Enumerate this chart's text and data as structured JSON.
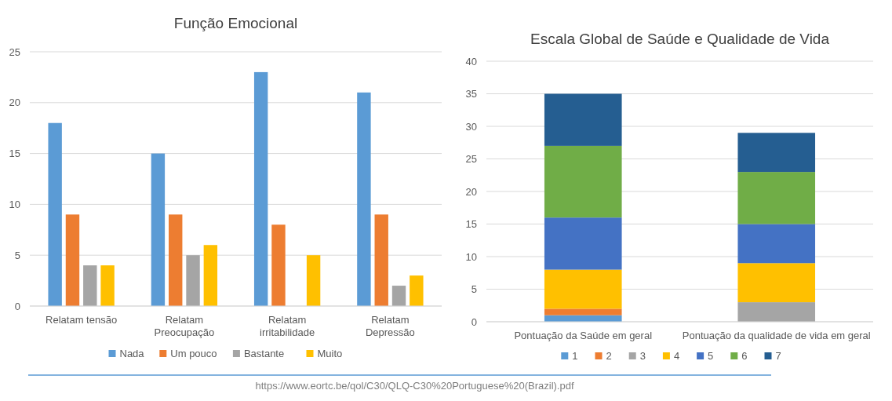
{
  "chart_data": [
    {
      "type": "bar",
      "title": "Função Emocional",
      "categories": [
        "Relatam tensão",
        "Relatam Preocupação",
        "Relatam irritabilidade",
        "Relatam Depressão"
      ],
      "series": [
        {
          "name": "Nada",
          "color": "#5b9bd5",
          "values": [
            18,
            15,
            23,
            21
          ]
        },
        {
          "name": "Um pouco",
          "color": "#ed7d31",
          "values": [
            9,
            9,
            8,
            9
          ]
        },
        {
          "name": "Bastante",
          "color": "#a5a5a5",
          "values": [
            4,
            5,
            0,
            2
          ]
        },
        {
          "name": "Muito",
          "color": "#ffc000",
          "values": [
            4,
            6,
            5,
            3
          ]
        }
      ],
      "ylim": [
        0,
        25
      ],
      "yticks": [
        0,
        5,
        10,
        15,
        20,
        25
      ],
      "grid": "y",
      "legend": "bottom",
      "annotations": [
        "https://www.eortc.be/qol/C30/QLQ-C30%20Portuguese%20(Brazil).pdf"
      ]
    },
    {
      "type": "bar",
      "title": "Escala Global de Saúde e Qualidade de Vida",
      "categories": [
        "Pontuação da Saúde em geral",
        "Pontuação da qualidade de vida em geral"
      ],
      "stacked": true,
      "series": [
        {
          "name": "1",
          "color": "#5b9bd5",
          "values": [
            1,
            0
          ]
        },
        {
          "name": "2",
          "color": "#ed7d31",
          "values": [
            1,
            0
          ]
        },
        {
          "name": "3",
          "color": "#a5a5a5",
          "values": [
            0,
            3
          ]
        },
        {
          "name": "4",
          "color": "#ffc000",
          "values": [
            6,
            6
          ]
        },
        {
          "name": "5",
          "color": "#4472c4",
          "values": [
            8,
            6
          ]
        },
        {
          "name": "6",
          "color": "#70ad47",
          "values": [
            11,
            8
          ]
        },
        {
          "name": "7",
          "color": "#255e91",
          "values": [
            8,
            6
          ]
        }
      ],
      "ylim": [
        0,
        40
      ],
      "yticks": [
        0,
        5,
        10,
        15,
        20,
        25,
        30,
        35,
        40
      ],
      "grid": "y",
      "legend": "bottom"
    }
  ]
}
